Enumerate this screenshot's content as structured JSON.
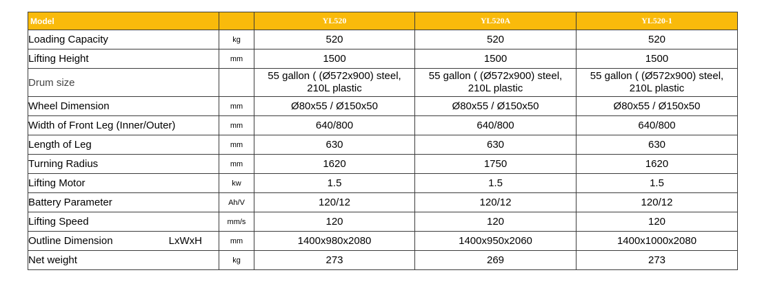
{
  "header": {
    "model_label": "Model",
    "models": [
      "YL520",
      "YL520A",
      "YL520-1"
    ]
  },
  "rows": [
    {
      "name": "Loading Capacity",
      "unit": "kg",
      "values": [
        "520",
        "520",
        "520"
      ]
    },
    {
      "name": "Lifting Height",
      "unit": "mm",
      "values": [
        "1500",
        "1500",
        "1500"
      ]
    },
    {
      "name": "Drum size",
      "unit": "",
      "values": [
        "55 gallon ( (Ø572x900) steel,\n210L plastic",
        "55 gallon ( (Ø572x900) steel,\n210L plastic",
        "55 gallon ( (Ø572x900) steel,\n210L plastic"
      ]
    },
    {
      "name": "Wheel Dimension",
      "unit": "mm",
      "values": [
        "Ø80x55 / Ø150x50",
        "Ø80x55 / Ø150x50",
        "Ø80x55 / Ø150x50"
      ]
    },
    {
      "name": "Width of Front Leg (Inner/Outer)",
      "unit": "mm",
      "values": [
        "640/800",
        "640/800",
        "640/800"
      ]
    },
    {
      "name": "Length of Leg",
      "unit": "mm",
      "values": [
        "630",
        "630",
        "630"
      ]
    },
    {
      "name": "Turning Radius",
      "unit": "mm",
      "values": [
        "1620",
        "1750",
        "1620"
      ]
    },
    {
      "name": "Lifting Motor",
      "unit": "kw",
      "values": [
        "1.5",
        "1.5",
        "1.5"
      ]
    },
    {
      "name": "Battery Parameter",
      "unit": "Ah/V",
      "values": [
        "120/12",
        "120/12",
        "120/12"
      ]
    },
    {
      "name": "Lifting Speed",
      "unit": "mm/s",
      "values": [
        "120",
        "120",
        "120"
      ]
    },
    {
      "name": "Outline Dimension",
      "name_suffix": "LxWxH",
      "unit": "mm",
      "values": [
        "1400x980x2080",
        "1400x950x2060",
        "1400x1000x2080"
      ]
    },
    {
      "name": "Net weight",
      "unit": "kg",
      "values": [
        "273",
        "269",
        "273"
      ]
    }
  ],
  "colors": {
    "header_bg": "#f9ba0b",
    "header_text": "#ffffff",
    "border": "#3a3a3a"
  }
}
